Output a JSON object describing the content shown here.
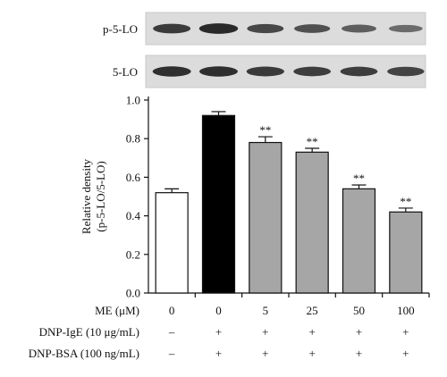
{
  "blots": [
    {
      "label": "p-5-LO",
      "intensities": [
        0.8,
        0.95,
        0.7,
        0.62,
        0.5,
        0.38
      ]
    },
    {
      "label": "5-LO",
      "intensities": [
        0.9,
        0.9,
        0.82,
        0.78,
        0.78,
        0.74
      ]
    }
  ],
  "treatments": [
    {
      "label": "ME (μM)",
      "values": [
        "0",
        "0",
        "5",
        "25",
        "50",
        "100"
      ]
    },
    {
      "label": "DNP-IgE (10 μg/mL)",
      "values": [
        "–",
        "+",
        "+",
        "+",
        "+",
        "+"
      ]
    },
    {
      "label": "DNP-BSA (100 ng/mL)",
      "values": [
        "–",
        "+",
        "+",
        "+",
        "+",
        "+"
      ]
    }
  ],
  "chart_data": {
    "type": "bar",
    "categories": [
      "1",
      "2",
      "3",
      "4",
      "5",
      "6"
    ],
    "values": [
      0.52,
      0.92,
      0.78,
      0.73,
      0.54,
      0.42
    ],
    "errors": [
      0.02,
      0.02,
      0.03,
      0.02,
      0.02,
      0.02
    ],
    "annotations": [
      "",
      "",
      "**",
      "**",
      "**",
      "**"
    ],
    "bar_colors": [
      "#ffffff",
      "#000000",
      "#a6a6a6",
      "#a6a6a6",
      "#a6a6a6",
      "#a6a6a6"
    ],
    "ylabel_line1": "Relative density",
    "ylabel_line2": "(p-5-LO/5-LO)",
    "ylim": [
      0.0,
      1.0
    ],
    "yticks": [
      "0.0",
      "0.2",
      "0.4",
      "0.6",
      "0.8",
      "1.0"
    ],
    "grid": false
  }
}
